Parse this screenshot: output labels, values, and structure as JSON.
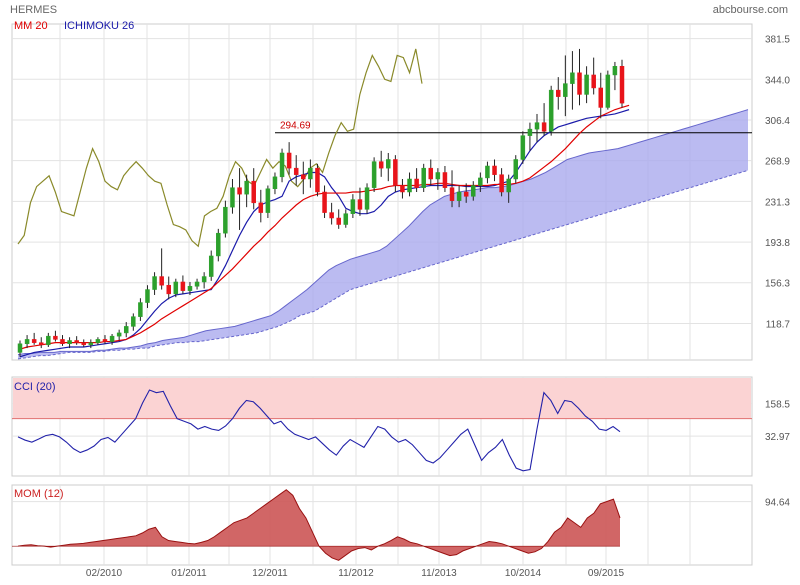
{
  "header": {
    "ticker": "HERMES",
    "source": "abcbourse.com"
  },
  "legend": {
    "mm": "MM 20",
    "ichimoku": "ICHIMOKU 26",
    "cci": "CCI (20)",
    "mom": "MOM (12)"
  },
  "colors": {
    "up": "#2ca02c",
    "down": "#e8141a",
    "mm": "#e00000",
    "kijun": "#1a1aaa",
    "chikou": "#8a8a2a",
    "cloud_fill": "#aaaaee",
    "cci_line": "#2222aa",
    "cci_band": "#fbd3d3",
    "mom_fill": "#cc5555",
    "grid": "#e3e3e3",
    "axis_text": "#555555"
  },
  "chart_data": [
    {
      "type": "candlestick",
      "panel": "price",
      "title": "",
      "x_ticks": [
        "02/2010",
        "01/2011",
        "12/2011",
        "11/2012",
        "11/2013",
        "10/2014",
        "09/2015"
      ],
      "y_ticks": [
        "381.5",
        "344.0",
        "306.4",
        "268.9",
        "231.3",
        "193.8",
        "156.3",
        "118.7"
      ],
      "ylim": [
        85,
        395
      ],
      "annotation": {
        "label": "294.69",
        "value": 294.69
      },
      "grid": true,
      "candles": [
        {
          "o": 92,
          "h": 103,
          "l": 88,
          "c": 100
        },
        {
          "o": 100,
          "h": 108,
          "l": 96,
          "c": 104
        },
        {
          "o": 104,
          "h": 110,
          "l": 99,
          "c": 101
        },
        {
          "o": 101,
          "h": 106,
          "l": 96,
          "c": 99
        },
        {
          "o": 99,
          "h": 110,
          "l": 97,
          "c": 107
        },
        {
          "o": 107,
          "h": 112,
          "l": 102,
          "c": 104
        },
        {
          "o": 104,
          "h": 108,
          "l": 98,
          "c": 100
        },
        {
          "o": 100,
          "h": 106,
          "l": 96,
          "c": 103
        },
        {
          "o": 103,
          "h": 107,
          "l": 99,
          "c": 101
        },
        {
          "o": 101,
          "h": 104,
          "l": 97,
          "c": 99
        },
        {
          "o": 99,
          "h": 104,
          "l": 96,
          "c": 101
        },
        {
          "o": 101,
          "h": 106,
          "l": 99,
          "c": 104
        },
        {
          "o": 104,
          "h": 108,
          "l": 100,
          "c": 102
        },
        {
          "o": 102,
          "h": 109,
          "l": 99,
          "c": 107
        },
        {
          "o": 107,
          "h": 113,
          "l": 103,
          "c": 110
        },
        {
          "o": 110,
          "h": 120,
          "l": 106,
          "c": 116
        },
        {
          "o": 116,
          "h": 128,
          "l": 112,
          "c": 125
        },
        {
          "o": 125,
          "h": 142,
          "l": 121,
          "c": 138
        },
        {
          "o": 138,
          "h": 154,
          "l": 133,
          "c": 150
        },
        {
          "o": 150,
          "h": 166,
          "l": 145,
          "c": 162
        },
        {
          "o": 162,
          "h": 188,
          "l": 150,
          "c": 154
        },
        {
          "o": 154,
          "h": 162,
          "l": 141,
          "c": 146
        },
        {
          "o": 146,
          "h": 160,
          "l": 143,
          "c": 157
        },
        {
          "o": 157,
          "h": 163,
          "l": 146,
          "c": 149
        },
        {
          "o": 149,
          "h": 157,
          "l": 145,
          "c": 153
        },
        {
          "o": 153,
          "h": 160,
          "l": 150,
          "c": 157
        },
        {
          "o": 157,
          "h": 166,
          "l": 151,
          "c": 162
        },
        {
          "o": 162,
          "h": 186,
          "l": 158,
          "c": 181
        },
        {
          "o": 181,
          "h": 206,
          "l": 176,
          "c": 202
        },
        {
          "o": 202,
          "h": 232,
          "l": 198,
          "c": 226
        },
        {
          "o": 226,
          "h": 252,
          "l": 220,
          "c": 244
        },
        {
          "o": 244,
          "h": 262,
          "l": 205,
          "c": 238
        },
        {
          "o": 238,
          "h": 256,
          "l": 226,
          "c": 250
        },
        {
          "o": 250,
          "h": 262,
          "l": 224,
          "c": 230
        },
        {
          "o": 230,
          "h": 242,
          "l": 212,
          "c": 221
        },
        {
          "o": 221,
          "h": 246,
          "l": 216,
          "c": 243
        },
        {
          "o": 243,
          "h": 258,
          "l": 238,
          "c": 254
        },
        {
          "o": 254,
          "h": 280,
          "l": 249,
          "c": 276
        },
        {
          "o": 276,
          "h": 286,
          "l": 256,
          "c": 262
        },
        {
          "o": 262,
          "h": 274,
          "l": 246,
          "c": 256
        },
        {
          "o": 256,
          "h": 268,
          "l": 238,
          "c": 252
        },
        {
          "o": 252,
          "h": 270,
          "l": 244,
          "c": 262
        },
        {
          "o": 262,
          "h": 266,
          "l": 236,
          "c": 240
        },
        {
          "o": 240,
          "h": 246,
          "l": 216,
          "c": 221
        },
        {
          "o": 221,
          "h": 230,
          "l": 210,
          "c": 216
        },
        {
          "o": 216,
          "h": 224,
          "l": 206,
          "c": 210
        },
        {
          "o": 210,
          "h": 224,
          "l": 207,
          "c": 220
        },
        {
          "o": 220,
          "h": 238,
          "l": 216,
          "c": 233
        },
        {
          "o": 233,
          "h": 244,
          "l": 218,
          "c": 224
        },
        {
          "o": 224,
          "h": 248,
          "l": 220,
          "c": 244
        },
        {
          "o": 244,
          "h": 272,
          "l": 240,
          "c": 268
        },
        {
          "o": 268,
          "h": 278,
          "l": 254,
          "c": 262
        },
        {
          "o": 262,
          "h": 276,
          "l": 250,
          "c": 270
        },
        {
          "o": 270,
          "h": 274,
          "l": 240,
          "c": 246
        },
        {
          "o": 246,
          "h": 252,
          "l": 234,
          "c": 240
        },
        {
          "o": 240,
          "h": 258,
          "l": 236,
          "c": 252
        },
        {
          "o": 252,
          "h": 262,
          "l": 240,
          "c": 244
        },
        {
          "o": 244,
          "h": 266,
          "l": 240,
          "c": 262
        },
        {
          "o": 262,
          "h": 270,
          "l": 246,
          "c": 252
        },
        {
          "o": 252,
          "h": 262,
          "l": 242,
          "c": 258
        },
        {
          "o": 258,
          "h": 264,
          "l": 240,
          "c": 244
        },
        {
          "o": 244,
          "h": 260,
          "l": 226,
          "c": 232
        },
        {
          "o": 232,
          "h": 246,
          "l": 226,
          "c": 240
        },
        {
          "o": 240,
          "h": 248,
          "l": 230,
          "c": 236
        },
        {
          "o": 236,
          "h": 250,
          "l": 232,
          "c": 246
        },
        {
          "o": 246,
          "h": 258,
          "l": 240,
          "c": 253
        },
        {
          "o": 253,
          "h": 268,
          "l": 248,
          "c": 264
        },
        {
          "o": 264,
          "h": 270,
          "l": 250,
          "c": 256
        },
        {
          "o": 256,
          "h": 262,
          "l": 236,
          "c": 240
        },
        {
          "o": 240,
          "h": 256,
          "l": 230,
          "c": 252
        },
        {
          "o": 252,
          "h": 274,
          "l": 248,
          "c": 270
        },
        {
          "o": 270,
          "h": 296,
          "l": 266,
          "c": 292
        },
        {
          "o": 292,
          "h": 304,
          "l": 278,
          "c": 298
        },
        {
          "o": 298,
          "h": 312,
          "l": 286,
          "c": 304
        },
        {
          "o": 304,
          "h": 322,
          "l": 292,
          "c": 296
        },
        {
          "o": 296,
          "h": 338,
          "l": 292,
          "c": 334
        },
        {
          "o": 334,
          "h": 346,
          "l": 316,
          "c": 328
        },
        {
          "o": 328,
          "h": 366,
          "l": 310,
          "c": 340
        },
        {
          "o": 340,
          "h": 370,
          "l": 316,
          "c": 350
        },
        {
          "o": 350,
          "h": 372,
          "l": 320,
          "c": 330
        },
        {
          "o": 330,
          "h": 356,
          "l": 322,
          "c": 348
        },
        {
          "o": 348,
          "h": 364,
          "l": 330,
          "c": 336
        },
        {
          "o": 336,
          "h": 350,
          "l": 308,
          "c": 318
        },
        {
          "o": 318,
          "h": 352,
          "l": 316,
          "c": 348
        },
        {
          "o": 348,
          "h": 360,
          "l": 334,
          "c": 356
        },
        {
          "o": 356,
          "h": 362,
          "l": 318,
          "c": 322
        }
      ],
      "mm20": [
        95,
        97,
        98,
        99,
        100,
        101,
        101,
        101,
        101,
        101,
        101,
        101,
        102,
        102,
        103,
        104,
        107,
        110,
        114,
        118,
        123,
        127,
        131,
        135,
        139,
        143,
        147,
        151,
        157,
        163,
        169,
        176,
        183,
        190,
        196,
        203,
        209,
        216,
        222,
        228,
        233,
        236,
        238,
        239,
        239,
        239,
        239,
        240,
        240,
        241,
        242,
        243,
        245,
        246,
        246,
        246,
        246,
        247,
        247,
        248,
        248,
        247,
        246,
        246,
        246,
        246,
        246,
        247,
        247,
        247,
        248,
        250,
        253,
        258,
        263,
        268,
        274,
        280,
        287,
        294,
        300,
        305,
        310,
        313,
        316,
        318,
        320
      ],
      "kijun": [
        88,
        90,
        92,
        93,
        94,
        95,
        96,
        97,
        97,
        97,
        98,
        99,
        100,
        101,
        102,
        104,
        108,
        114,
        122,
        130,
        137,
        142,
        145,
        146,
        147,
        148,
        149,
        150,
        160,
        172,
        186,
        200,
        212,
        222,
        228,
        231,
        233,
        236,
        250,
        254,
        256,
        258,
        258,
        254,
        244,
        236,
        225,
        222,
        220,
        220,
        222,
        228,
        236,
        240,
        242,
        243,
        244,
        245,
        246,
        246,
        246,
        246,
        246,
        245,
        245,
        245,
        245,
        246,
        248,
        250,
        258,
        268,
        278,
        286,
        292,
        296,
        300,
        302,
        304,
        306,
        308,
        309,
        310,
        311,
        312,
        314,
        316
      ],
      "chikou": [
        192,
        200,
        230,
        245,
        250,
        255,
        240,
        222,
        220,
        218,
        240,
        262,
        280,
        268,
        250,
        245,
        242,
        255,
        262,
        268,
        262,
        255,
        250,
        248,
        228,
        210,
        208,
        205,
        195,
        190,
        218,
        222,
        225,
        236,
        255,
        268,
        262,
        250,
        246,
        258,
        270,
        262,
        268,
        264,
        250,
        245,
        252,
        262,
        266,
        258,
        276,
        292,
        304,
        296,
        298,
        330,
        350,
        366,
        356,
        344,
        342,
        366,
        364,
        350,
        372,
        340
      ],
      "cloud_a": [
        90,
        91,
        91,
        92,
        92,
        92,
        93,
        93,
        93,
        93,
        93,
        94,
        94,
        95,
        96,
        96,
        97,
        98,
        100,
        101,
        103,
        104,
        105,
        106,
        108,
        110,
        112,
        113,
        114,
        115,
        116,
        118,
        120,
        122,
        124,
        126,
        130,
        135,
        140,
        145,
        150,
        156,
        162,
        168,
        172,
        175,
        178,
        180,
        182,
        184,
        186,
        190,
        196,
        202,
        208,
        215,
        222,
        228,
        232,
        236,
        238,
        240,
        241,
        242,
        243,
        244,
        244,
        245,
        246,
        248,
        250,
        252,
        255,
        258,
        262,
        266,
        270,
        272,
        274,
        276,
        277,
        278,
        279,
        280,
        282,
        284,
        286,
        288,
        290,
        292,
        294,
        296,
        298,
        300,
        302,
        304,
        306,
        308,
        310,
        312,
        314,
        316
      ],
      "cloud_b": [
        86,
        87,
        88,
        89,
        89,
        90,
        91,
        92,
        92,
        92,
        92,
        93,
        93,
        94,
        94,
        95,
        95,
        96,
        96,
        98,
        99,
        100,
        101,
        101,
        102,
        102,
        103,
        104,
        105,
        106,
        107,
        108,
        109,
        110,
        112,
        114,
        116,
        119,
        122,
        126,
        128,
        130,
        134,
        138,
        142,
        146,
        150,
        152,
        154,
        156,
        158,
        160,
        162,
        164,
        166,
        168,
        170,
        172,
        174,
        176,
        178,
        180,
        182,
        184,
        186,
        188,
        190,
        192,
        194,
        196,
        198,
        200,
        202,
        204,
        206,
        208,
        210,
        212,
        214,
        216,
        218,
        220,
        222,
        224,
        226,
        228,
        230,
        232,
        234,
        236,
        238,
        240,
        242,
        244,
        246,
        248,
        250,
        252,
        254,
        256,
        258,
        260
      ]
    },
    {
      "type": "line",
      "panel": "cci",
      "title": "",
      "y_ticks": [
        "158.5",
        "32.97"
      ],
      "ylim": [
        -120,
        260
      ],
      "band": [
        100,
        260
      ],
      "grid": true,
      "values": [
        30,
        18,
        10,
        22,
        35,
        40,
        30,
        10,
        -15,
        -30,
        -20,
        -5,
        20,
        28,
        10,
        40,
        70,
        100,
        160,
        210,
        200,
        205,
        150,
        100,
        90,
        80,
        60,
        70,
        60,
        55,
        72,
        100,
        140,
        170,
        165,
        140,
        110,
        80,
        90,
        60,
        40,
        30,
        20,
        30,
        5,
        -20,
        -40,
        -5,
        20,
        5,
        -10,
        30,
        70,
        60,
        30,
        10,
        20,
        0,
        -30,
        -60,
        -70,
        -50,
        -20,
        10,
        40,
        60,
        0,
        -60,
        -30,
        -10,
        20,
        -40,
        -90,
        -100,
        -95,
        60,
        200,
        170,
        120,
        170,
        165,
        140,
        110,
        90,
        60,
        55,
        70,
        50
      ]
    },
    {
      "type": "area",
      "panel": "mom",
      "title": "",
      "y_ticks": [
        "94.64"
      ],
      "ylim": [
        -40,
        130
      ],
      "grid": true,
      "values": [
        0,
        2,
        3,
        1,
        0,
        -2,
        0,
        2,
        4,
        5,
        6,
        8,
        10,
        12,
        14,
        16,
        18,
        20,
        22,
        28,
        36,
        40,
        20,
        12,
        10,
        8,
        6,
        5,
        8,
        12,
        20,
        30,
        40,
        50,
        55,
        60,
        70,
        80,
        90,
        100,
        110,
        120,
        108,
        80,
        60,
        30,
        0,
        -15,
        -25,
        -30,
        -20,
        -10,
        -5,
        -3,
        -8,
        0,
        5,
        12,
        20,
        15,
        8,
        5,
        0,
        -5,
        -10,
        -15,
        -20,
        -18,
        -10,
        -5,
        0,
        5,
        10,
        8,
        5,
        0,
        -5,
        -10,
        -15,
        -12,
        -5,
        10,
        30,
        40,
        60,
        50,
        40,
        60,
        70,
        90,
        95,
        100,
        60
      ]
    }
  ]
}
